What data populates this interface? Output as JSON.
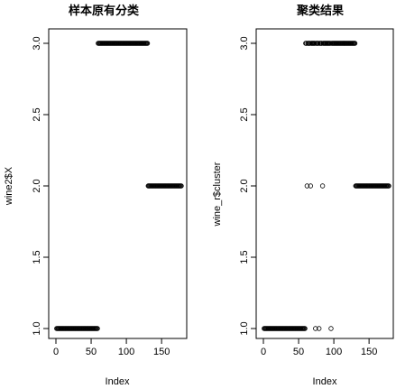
{
  "chart_data": [
    {
      "type": "scatter",
      "title": "样本原有分类",
      "xlabel": "Index",
      "ylabel": "wine2$X",
      "xlim": [
        0,
        178
      ],
      "ylim": [
        1.0,
        3.0
      ],
      "xticks": [
        0,
        50,
        100,
        150
      ],
      "yticks": [
        1.0,
        1.5,
        2.0,
        2.5,
        3.0
      ],
      "grid": false,
      "series": [
        {
          "segments": [
            {
              "x_start": 1,
              "x_end": 59,
              "y": 1
            },
            {
              "x_start": 60,
              "x_end": 130,
              "y": 3
            },
            {
              "x_start": 131,
              "x_end": 178,
              "y": 2
            }
          ]
        }
      ]
    },
    {
      "type": "scatter",
      "title": "聚类结果",
      "xlabel": "Index",
      "ylabel": "wine_r$cluster",
      "xlim": [
        0,
        178
      ],
      "ylim": [
        1.0,
        3.0
      ],
      "xticks": [
        0,
        50,
        100,
        150
      ],
      "yticks": [
        1.0,
        1.5,
        2.0,
        2.5,
        3.0
      ],
      "grid": false,
      "series": [
        {
          "segments": [
            {
              "x_start": 1,
              "x_end": 59,
              "y": 1
            },
            {
              "x_start": 60,
              "x_end": 130,
              "y": 3
            },
            {
              "x_start": 131,
              "x_end": 178,
              "y": 2
            }
          ],
          "exceptions": [
            {
              "x": 62,
              "y": 2
            },
            {
              "x": 67,
              "y": 2
            },
            {
              "x": 74,
              "y": 1
            },
            {
              "x": 79,
              "y": 1
            },
            {
              "x": 84,
              "y": 2
            },
            {
              "x": 96,
              "y": 1
            }
          ]
        }
      ]
    }
  ]
}
